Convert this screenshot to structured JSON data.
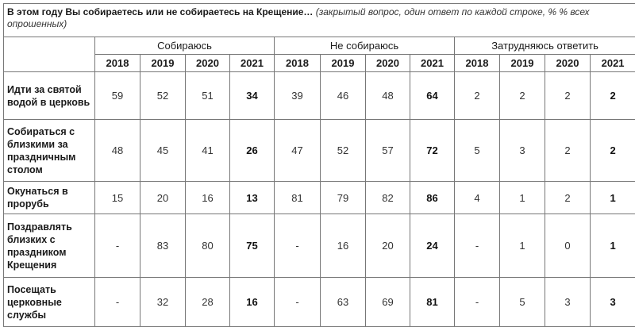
{
  "title": {
    "main": "В этом году Вы собираетесь или не собираетесь на Крещение…",
    "note": "(закрытый вопрос, один ответ по каждой строке, % % всех опрошенных)"
  },
  "groups": [
    "Собираюсь",
    "Не собираюсь",
    "Затрудняюсь ответить"
  ],
  "years": [
    "2018",
    "2019",
    "2020",
    "2021"
  ],
  "rows": [
    {
      "label": "Идти за святой водой в церковь",
      "values": [
        "59",
        "52",
        "51",
        "34",
        "39",
        "46",
        "48",
        "64",
        "2",
        "2",
        "2",
        "2"
      ]
    },
    {
      "label": "Собираться с близкими за праздничным столом",
      "values": [
        "48",
        "45",
        "41",
        "26",
        "47",
        "52",
        "57",
        "72",
        "5",
        "3",
        "2",
        "2"
      ]
    },
    {
      "label": "Окунаться в прорубь",
      "values": [
        "15",
        "20",
        "16",
        "13",
        "81",
        "79",
        "82",
        "86",
        "4",
        "1",
        "2",
        "1"
      ]
    },
    {
      "label": "Поздравлять близких с праздником Крещения",
      "values": [
        "-",
        "83",
        "80",
        "75",
        "-",
        "16",
        "20",
        "24",
        "-",
        "1",
        "0",
        "1"
      ]
    },
    {
      "label": "Посещать церковные службы",
      "values": [
        "-",
        "32",
        "28",
        "16",
        "-",
        "63",
        "69",
        "81",
        "-",
        "5",
        "3",
        "3"
      ]
    }
  ]
}
